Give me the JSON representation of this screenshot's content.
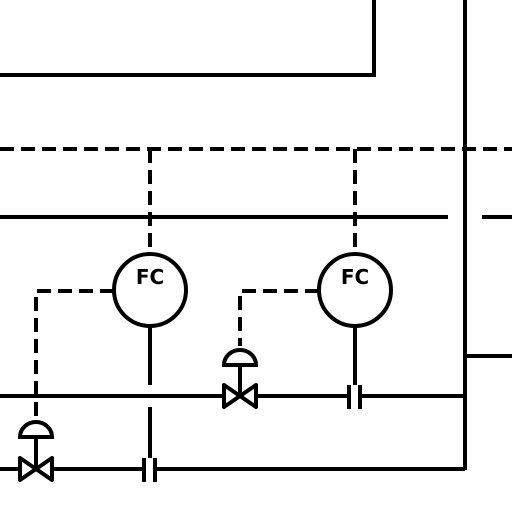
{
  "diagram": {
    "instruments": [
      {
        "tag": "FC"
      },
      {
        "tag": "FC"
      }
    ]
  },
  "colors": {
    "line": "#000000",
    "background": "#ffffff"
  }
}
